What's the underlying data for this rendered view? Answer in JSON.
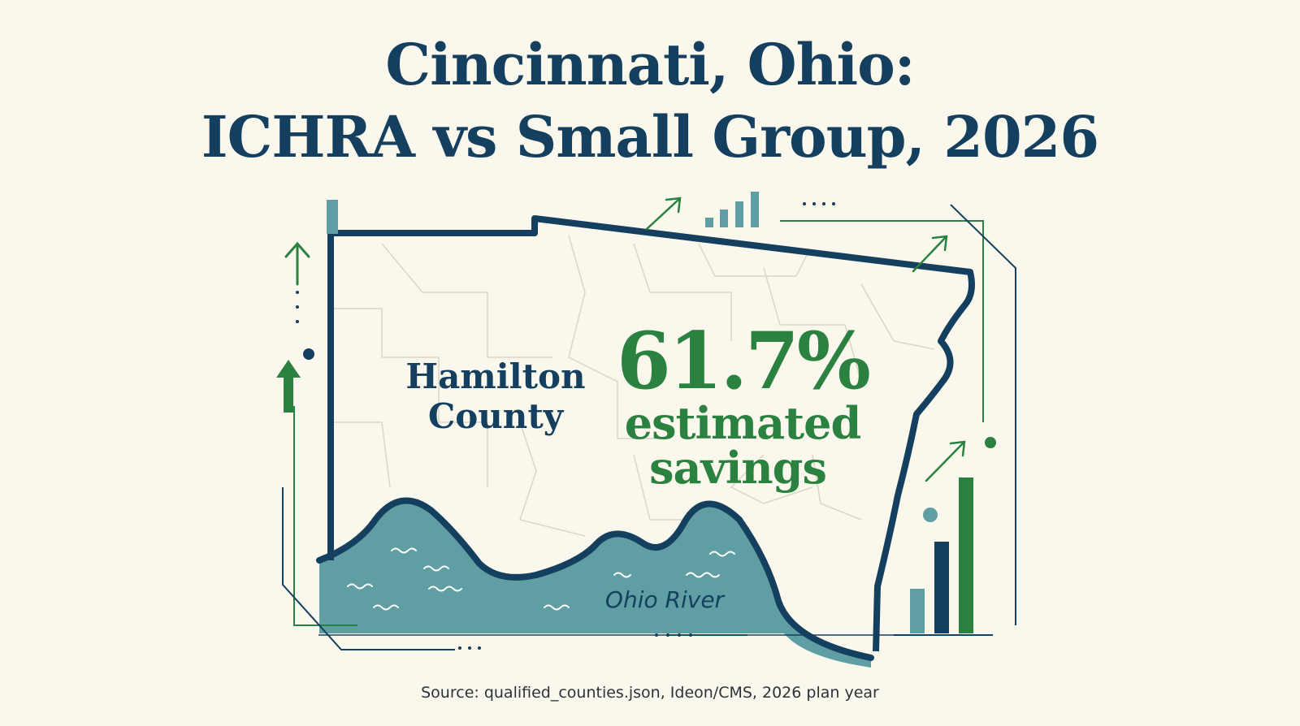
{
  "header": {
    "title_line1": "Cincinnati, Ohio:",
    "title_line2": "ICHRA vs Small Group, 2026"
  },
  "map": {
    "county_line1": "Hamilton",
    "county_line2": "County",
    "savings_value": "61.7%",
    "savings_line1": "estimated",
    "savings_line2": "savings",
    "river_label": "Ohio River"
  },
  "footer": {
    "source": "Source: qualified_counties.json, Ideon/CMS, 2026 plan year"
  },
  "colors": {
    "navy": "#143f5e",
    "green": "#2a8140",
    "teal": "#5f9fa3",
    "background": "#faf7ec"
  },
  "icons": [
    "arrow-up-icon",
    "bar-chart-icon",
    "trend-arrow-icon",
    "wave-icon"
  ]
}
